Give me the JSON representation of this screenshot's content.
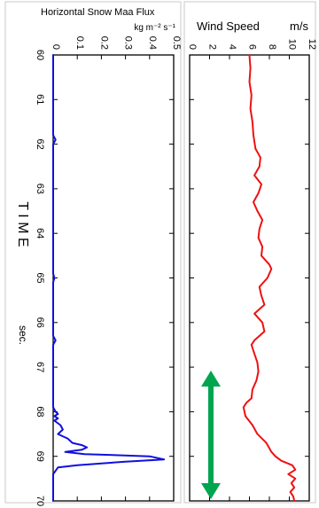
{
  "chart_data": [
    {
      "type": "line",
      "title": "Horizontal Snow Maa Flux",
      "units": "kg m⁻² s⁻¹",
      "orientation": "rotated-vertical",
      "x_axis_label": "T I M E",
      "x_axis_unit": "sec.",
      "xlim": [
        60,
        70
      ],
      "xticks": [
        "60",
        "61",
        "62",
        "63",
        "64",
        "65",
        "66",
        "67",
        "68",
        "69",
        "70"
      ],
      "ylim": [
        0,
        0.5
      ],
      "yticks": [
        "0",
        "0.1",
        "0.2",
        "0.3",
        "0.4",
        "0.5"
      ],
      "series": [
        {
          "color": "#1010dd",
          "points": [
            [
              60,
              0.0
            ],
            [
              61.8,
              0.0
            ],
            [
              61.9,
              0.01
            ],
            [
              62,
              0.0
            ],
            [
              63,
              0.0
            ],
            [
              64.9,
              0.0
            ],
            [
              65,
              0.005
            ],
            [
              65.1,
              0.0
            ],
            [
              66.3,
              0.0
            ],
            [
              66.4,
              0.01
            ],
            [
              66.5,
              0.0
            ],
            [
              67.9,
              0.0
            ],
            [
              68,
              0.01
            ],
            [
              68.05,
              0.02
            ],
            [
              68.1,
              0.005
            ],
            [
              68.15,
              0.02
            ],
            [
              68.2,
              0.005
            ],
            [
              68.3,
              0.03
            ],
            [
              68.4,
              0.04
            ],
            [
              68.5,
              0.02
            ],
            [
              68.6,
              0.06
            ],
            [
              68.7,
              0.08
            ],
            [
              68.75,
              0.12
            ],
            [
              68.8,
              0.14
            ],
            [
              68.85,
              0.12
            ],
            [
              68.9,
              0.05
            ],
            [
              68.95,
              0.13
            ],
            [
              69.0,
              0.4
            ],
            [
              69.07,
              0.46
            ],
            [
              69.12,
              0.3
            ],
            [
              69.2,
              0.1
            ],
            [
              69.25,
              0.02
            ],
            [
              69.4,
              0.0
            ],
            [
              70,
              0.0
            ]
          ]
        }
      ]
    },
    {
      "type": "line",
      "title": "Wind Speed",
      "units": "m/s",
      "orientation": "rotated-vertical",
      "xlim": [
        60,
        70
      ],
      "ylim": [
        0,
        12
      ],
      "yticks": [
        "0",
        "2",
        "4",
        "6",
        "8",
        "10",
        "12"
      ],
      "series": [
        {
          "color": "#ee1111",
          "points": [
            [
              60,
              6.0
            ],
            [
              60.3,
              6.1
            ],
            [
              60.6,
              6.0
            ],
            [
              60.9,
              6.2
            ],
            [
              61.2,
              6.1
            ],
            [
              61.5,
              6.3
            ],
            [
              61.8,
              6.4
            ],
            [
              62.1,
              6.6
            ],
            [
              62.3,
              7.1
            ],
            [
              62.5,
              7.0
            ],
            [
              62.7,
              6.5
            ],
            [
              62.9,
              7.2
            ],
            [
              63.1,
              6.9
            ],
            [
              63.3,
              6.4
            ],
            [
              63.5,
              6.8
            ],
            [
              63.7,
              7.3
            ],
            [
              63.9,
              7.0
            ],
            [
              64.1,
              6.9
            ],
            [
              64.3,
              7.3
            ],
            [
              64.5,
              7.2
            ],
            [
              64.7,
              8.0
            ],
            [
              64.8,
              8.2
            ],
            [
              65.0,
              7.8
            ],
            [
              65.2,
              7.0
            ],
            [
              65.4,
              7.2
            ],
            [
              65.6,
              7.5
            ],
            [
              65.8,
              6.5
            ],
            [
              66.0,
              7.3
            ],
            [
              66.2,
              7.5
            ],
            [
              66.4,
              6.5
            ],
            [
              66.5,
              6.2
            ],
            [
              66.7,
              6.5
            ],
            [
              66.9,
              6.8
            ],
            [
              67.1,
              6.9
            ],
            [
              67.3,
              6.7
            ],
            [
              67.5,
              6.3
            ],
            [
              67.7,
              6.2
            ],
            [
              67.8,
              5.7
            ],
            [
              67.9,
              5.4
            ],
            [
              68.1,
              5.6
            ],
            [
              68.3,
              6.3
            ],
            [
              68.5,
              6.8
            ],
            [
              68.7,
              7.7
            ],
            [
              68.9,
              8.2
            ],
            [
              69.0,
              8.6
            ],
            [
              69.1,
              9.2
            ],
            [
              69.2,
              10.3
            ],
            [
              69.3,
              10.6
            ],
            [
              69.4,
              9.9
            ],
            [
              69.5,
              10.6
            ],
            [
              69.6,
              10.2
            ],
            [
              69.7,
              10.5
            ],
            [
              69.8,
              10.1
            ],
            [
              69.9,
              10.4
            ],
            [
              70.0,
              10.5
            ]
          ]
        }
      ]
    }
  ],
  "colors": {
    "arrow": "#00a550"
  }
}
